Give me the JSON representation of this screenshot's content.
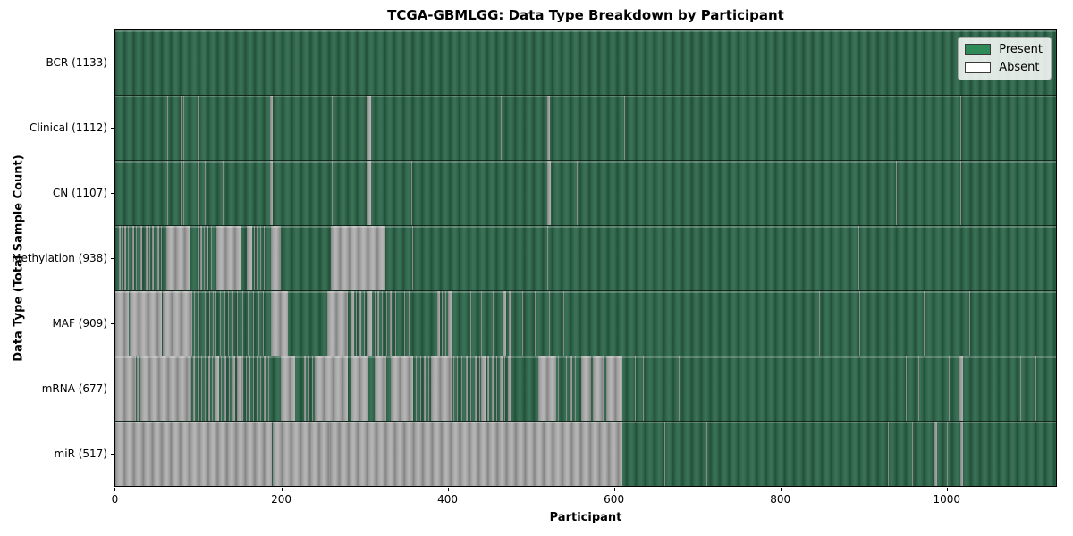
{
  "chart_data": {
    "type": "heatmap",
    "title": "TCGA-GBMLGG: Data Type Breakdown by Participant",
    "xlabel": "Participant",
    "ylabel": "Data Type (Total Sample Count)",
    "x_ticks": [
      0,
      200,
      400,
      600,
      800,
      1000
    ],
    "n_participants": 1133,
    "grid": false,
    "legend": {
      "position": "upper right",
      "entries": [
        {
          "label": "Present",
          "color": "#2e8b57"
        },
        {
          "label": "Absent",
          "color": "#ffffff"
        }
      ]
    },
    "rows": [
      {
        "label": "BCR (1133)",
        "data_type": "bcr",
        "present_count": 1133,
        "absent_segments": []
      },
      {
        "label": "Clinical (1112)",
        "data_type": "clinical",
        "present_count": 1112,
        "absent_segments": [
          [
            63,
            64
          ],
          [
            79,
            80
          ],
          [
            82,
            83
          ],
          [
            99,
            100
          ],
          [
            186,
            190
          ],
          [
            261,
            262
          ],
          [
            303,
            308
          ],
          [
            425,
            426
          ],
          [
            464,
            465
          ],
          [
            520,
            523
          ],
          [
            613,
            614
          ],
          [
            1018,
            1019
          ]
        ]
      },
      {
        "label": "CN (1107)",
        "data_type": "cn",
        "present_count": 1107,
        "absent_segments": [
          [
            63,
            64
          ],
          [
            79,
            80
          ],
          [
            82,
            83
          ],
          [
            99,
            100
          ],
          [
            108,
            109
          ],
          [
            129,
            130
          ],
          [
            186,
            190
          ],
          [
            261,
            262
          ],
          [
            303,
            308
          ],
          [
            357,
            358
          ],
          [
            425,
            426
          ],
          [
            520,
            525
          ],
          [
            556,
            557
          ],
          [
            940,
            941
          ],
          [
            1018,
            1019
          ]
        ]
      },
      {
        "label": "Methylation (938)",
        "data_type": "methylation",
        "present_count": 938,
        "absent_segments": [
          [
            4,
            6
          ],
          [
            8,
            9
          ],
          [
            11,
            13
          ],
          [
            15,
            16
          ],
          [
            18,
            19
          ],
          [
            21,
            23
          ],
          [
            25,
            26
          ],
          [
            30,
            32
          ],
          [
            34,
            35
          ],
          [
            37,
            39
          ],
          [
            41,
            42
          ],
          [
            44,
            46
          ],
          [
            48,
            49
          ],
          [
            51,
            53
          ],
          [
            55,
            56
          ],
          [
            61,
            91
          ],
          [
            99,
            100
          ],
          [
            102,
            104
          ],
          [
            107,
            108
          ],
          [
            110,
            112
          ],
          [
            115,
            116
          ],
          [
            122,
            152
          ],
          [
            158,
            165
          ],
          [
            167,
            168
          ],
          [
            170,
            171
          ],
          [
            174,
            176
          ],
          [
            179,
            180
          ],
          [
            187,
            199
          ],
          [
            260,
            325
          ],
          [
            358,
            359
          ],
          [
            405,
            406
          ],
          [
            520,
            521
          ],
          [
            895,
            896
          ]
        ]
      },
      {
        "label": "MAF (909)",
        "data_type": "maf",
        "present_count": 909,
        "absent_segments": [
          [
            0,
            16
          ],
          [
            17,
            56
          ],
          [
            57,
            90
          ],
          [
            91,
            93
          ],
          [
            95,
            96
          ],
          [
            99,
            101
          ],
          [
            104,
            105
          ],
          [
            108,
            109
          ],
          [
            113,
            114
          ],
          [
            117,
            118
          ],
          [
            121,
            122
          ],
          [
            126,
            127
          ],
          [
            131,
            132
          ],
          [
            136,
            137
          ],
          [
            141,
            142
          ],
          [
            147,
            148
          ],
          [
            153,
            154
          ],
          [
            159,
            160
          ],
          [
            166,
            167
          ],
          [
            172,
            173
          ],
          [
            178,
            179
          ],
          [
            187,
            208
          ],
          [
            255,
            280
          ],
          [
            283,
            288
          ],
          [
            290,
            291
          ],
          [
            294,
            296
          ],
          [
            299,
            300
          ],
          [
            303,
            309
          ],
          [
            312,
            313
          ],
          [
            316,
            318
          ],
          [
            321,
            322
          ],
          [
            326,
            327
          ],
          [
            331,
            333
          ],
          [
            337,
            338
          ],
          [
            342,
            343
          ],
          [
            348,
            349
          ],
          [
            353,
            354
          ],
          [
            388,
            391
          ],
          [
            393,
            394
          ],
          [
            397,
            398
          ],
          [
            401,
            405
          ],
          [
            415,
            416
          ],
          [
            428,
            429
          ],
          [
            441,
            442
          ],
          [
            455,
            456
          ],
          [
            466,
            471
          ],
          [
            474,
            477
          ],
          [
            490,
            491
          ],
          [
            505,
            506
          ],
          [
            522,
            523
          ],
          [
            540,
            541
          ],
          [
            751,
            752
          ],
          [
            848,
            849
          ],
          [
            896,
            897
          ],
          [
            974,
            975
          ],
          [
            1029,
            1030
          ]
        ]
      },
      {
        "label": "mRNA (677)",
        "data_type": "mrna",
        "present_count": 677,
        "absent_segments": [
          [
            0,
            25
          ],
          [
            26,
            29
          ],
          [
            30,
            90
          ],
          [
            91,
            92
          ],
          [
            94,
            96
          ],
          [
            99,
            100
          ],
          [
            103,
            105
          ],
          [
            108,
            109
          ],
          [
            112,
            114
          ],
          [
            116,
            117
          ],
          [
            120,
            125
          ],
          [
            127,
            128
          ],
          [
            131,
            134
          ],
          [
            137,
            138
          ],
          [
            141,
            144
          ],
          [
            147,
            151
          ],
          [
            152,
            154
          ],
          [
            157,
            158
          ],
          [
            161,
            163
          ],
          [
            166,
            167
          ],
          [
            170,
            172
          ],
          [
            175,
            176
          ],
          [
            179,
            181
          ],
          [
            184,
            185
          ],
          [
            199,
            217
          ],
          [
            222,
            223
          ],
          [
            227,
            229
          ],
          [
            233,
            234
          ],
          [
            237,
            238
          ],
          [
            240,
            280
          ],
          [
            283,
            305
          ],
          [
            312,
            326
          ],
          [
            332,
            359
          ],
          [
            362,
            363
          ],
          [
            367,
            368
          ],
          [
            372,
            374
          ],
          [
            377,
            378
          ],
          [
            380,
            405
          ],
          [
            407,
            408
          ],
          [
            411,
            413
          ],
          [
            417,
            418
          ],
          [
            422,
            424
          ],
          [
            428,
            429
          ],
          [
            433,
            435
          ],
          [
            438,
            439
          ],
          [
            441,
            446
          ],
          [
            448,
            450
          ],
          [
            453,
            456
          ],
          [
            459,
            460
          ],
          [
            463,
            466
          ],
          [
            469,
            470
          ],
          [
            473,
            477
          ],
          [
            509,
            531
          ],
          [
            533,
            534
          ],
          [
            537,
            539
          ],
          [
            543,
            544
          ],
          [
            548,
            550
          ],
          [
            554,
            555
          ],
          [
            561,
            573
          ],
          [
            575,
            589
          ],
          [
            591,
            611
          ],
          [
            626,
            627
          ],
          [
            635,
            636
          ],
          [
            679,
            680
          ],
          [
            902,
            903
          ],
          [
            952,
            953
          ],
          [
            967,
            968
          ],
          [
            1004,
            1006
          ],
          [
            1017,
            1021
          ],
          [
            1069,
            1070
          ],
          [
            1090,
            1091
          ],
          [
            1108,
            1109
          ]
        ]
      },
      {
        "label": "miR (517)",
        "data_type": "mir",
        "present_count": 517,
        "absent_segments": [
          [
            0,
            189
          ],
          [
            190,
            258
          ],
          [
            259,
            611
          ],
          [
            661,
            662
          ],
          [
            712,
            713
          ],
          [
            931,
            932
          ],
          [
            960,
            961
          ],
          [
            986,
            990
          ],
          [
            1002,
            1003
          ],
          [
            1018,
            1021
          ]
        ]
      }
    ]
  },
  "colors": {
    "present_fill": "#2e8b57",
    "absent_fill": "#ffffff",
    "present_shaded": "#2d6148",
    "absent_shaded": "#9d9d9d",
    "axis": "#000000"
  }
}
